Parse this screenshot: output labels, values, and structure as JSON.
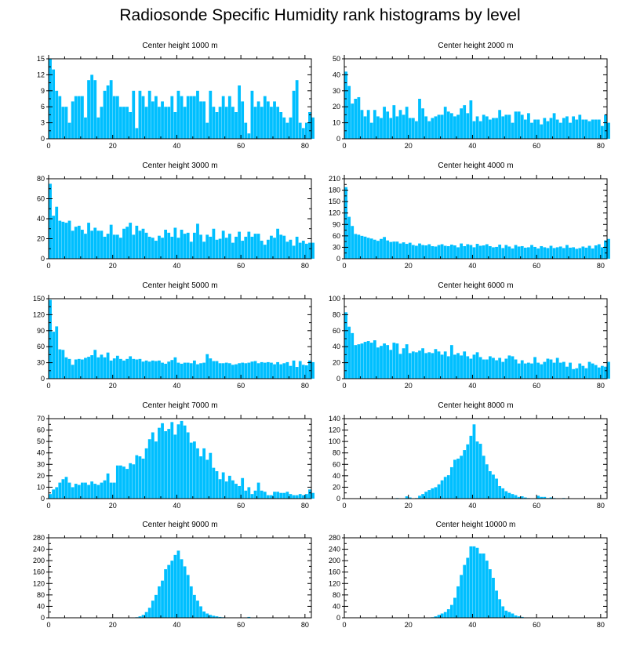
{
  "title": "Radiosonde Specific Humidity rank histograms by level",
  "style": {
    "bar_color": "#00BFFF",
    "axis_color": "#000000"
  },
  "chart_data": [
    {
      "type": "bar",
      "title": "Center height 1000 m",
      "xlim": [
        0,
        82
      ],
      "ylim": [
        0,
        15
      ],
      "xticks": [
        0,
        20,
        40,
        60,
        80
      ],
      "yticks": [
        0,
        3,
        6,
        9,
        12,
        15
      ],
      "values": [
        15,
        13,
        9,
        8,
        6,
        6,
        3,
        7,
        8,
        8,
        8,
        4,
        11,
        12,
        11,
        4,
        6,
        9,
        10,
        11,
        8,
        8,
        6,
        6,
        6,
        5,
        9,
        2,
        9,
        8,
        6,
        9,
        7,
        8,
        6,
        7,
        6,
        6,
        8,
        5,
        9,
        8,
        6,
        8,
        8,
        8,
        9,
        7,
        7,
        3,
        9,
        6,
        5,
        6,
        8,
        6,
        8,
        6,
        5,
        10,
        7,
        3,
        1,
        9,
        6,
        7,
        6,
        8,
        7,
        6,
        7,
        6,
        5,
        4,
        3,
        4,
        9,
        11,
        3,
        2,
        3,
        5,
        4
      ]
    },
    {
      "type": "bar",
      "title": "Center height 2000 m",
      "xlim": [
        0,
        82
      ],
      "ylim": [
        0,
        50
      ],
      "xticks": [
        0,
        20,
        40,
        60,
        80
      ],
      "yticks": [
        0,
        10,
        20,
        30,
        40,
        50
      ],
      "values": [
        42,
        33,
        22,
        25,
        26,
        18,
        14,
        18,
        10,
        18,
        14,
        13,
        20,
        17,
        13,
        21,
        14,
        18,
        15,
        20,
        13,
        13,
        11,
        25,
        19,
        14,
        11,
        13,
        14,
        15,
        15,
        20,
        17,
        16,
        14,
        15,
        19,
        21,
        16,
        24,
        11,
        14,
        11,
        15,
        14,
        12,
        13,
        13,
        18,
        14,
        15,
        15,
        10,
        17,
        17,
        15,
        12,
        16,
        10,
        12,
        12,
        9,
        13,
        11,
        13,
        16,
        12,
        10,
        13,
        14,
        10,
        14,
        12,
        15,
        12,
        12,
        11,
        12,
        12,
        12,
        8,
        15,
        10
      ]
    },
    {
      "type": "bar",
      "title": "Center height 3000 m",
      "xlim": [
        0,
        82
      ],
      "ylim": [
        0,
        80
      ],
      "xticks": [
        0,
        20,
        40,
        60,
        80
      ],
      "yticks": [
        0,
        20,
        40,
        60,
        80
      ],
      "values": [
        75,
        43,
        52,
        38,
        37,
        36,
        38,
        28,
        32,
        33,
        29,
        25,
        36,
        28,
        31,
        28,
        28,
        22,
        25,
        34,
        24,
        24,
        21,
        30,
        32,
        36,
        24,
        33,
        28,
        30,
        26,
        22,
        21,
        18,
        23,
        21,
        29,
        26,
        22,
        31,
        21,
        29,
        25,
        26,
        17,
        26,
        35,
        24,
        17,
        24,
        22,
        30,
        19,
        20,
        28,
        21,
        25,
        16,
        22,
        27,
        18,
        22,
        27,
        22,
        25,
        25,
        18,
        14,
        19,
        23,
        21,
        30,
        24,
        23,
        17,
        19,
        13,
        22,
        16,
        18,
        15,
        16,
        16
      ]
    },
    {
      "type": "bar",
      "title": "Center height 4000 m",
      "xlim": [
        0,
        82
      ],
      "ylim": [
        0,
        210
      ],
      "xticks": [
        0,
        20,
        40,
        60,
        80
      ],
      "yticks": [
        0,
        30,
        60,
        90,
        120,
        150,
        180,
        210
      ],
      "values": [
        188,
        110,
        86,
        65,
        63,
        60,
        58,
        55,
        53,
        50,
        47,
        52,
        57,
        48,
        44,
        45,
        45,
        40,
        43,
        39,
        42,
        36,
        34,
        40,
        36,
        35,
        38,
        33,
        32,
        36,
        38,
        34,
        33,
        37,
        35,
        30,
        40,
        33,
        38,
        36,
        30,
        39,
        34,
        35,
        38,
        33,
        30,
        31,
        37,
        28,
        36,
        32,
        27,
        36,
        32,
        33,
        29,
        30,
        36,
        31,
        27,
        33,
        30,
        28,
        34,
        28,
        30,
        32,
        28,
        36,
        29,
        30,
        26,
        28,
        32,
        29,
        34,
        27,
        35,
        38,
        30,
        48,
        52
      ]
    },
    {
      "type": "bar",
      "title": "Center height 5000 m",
      "xlim": [
        0,
        82
      ],
      "ylim": [
        0,
        150
      ],
      "xticks": [
        0,
        20,
        40,
        60,
        80
      ],
      "yticks": [
        0,
        30,
        60,
        90,
        120,
        150
      ],
      "values": [
        148,
        88,
        98,
        55,
        54,
        40,
        37,
        26,
        36,
        37,
        36,
        39,
        41,
        44,
        54,
        40,
        45,
        40,
        49,
        34,
        38,
        43,
        37,
        34,
        37,
        42,
        37,
        36,
        37,
        32,
        34,
        32,
        34,
        33,
        34,
        30,
        28,
        32,
        35,
        40,
        30,
        28,
        30,
        30,
        29,
        34,
        27,
        29,
        30,
        46,
        38,
        33,
        33,
        29,
        29,
        30,
        29,
        26,
        27,
        29,
        30,
        29,
        30,
        32,
        33,
        29,
        31,
        30,
        31,
        30,
        27,
        31,
        27,
        29,
        31,
        24,
        34,
        22,
        33,
        26,
        25,
        34,
        31
      ]
    },
    {
      "type": "bar",
      "title": "Center height 6000 m",
      "xlim": [
        0,
        82
      ],
      "ylim": [
        0,
        100
      ],
      "xticks": [
        0,
        20,
        40,
        60,
        80
      ],
      "yticks": [
        0,
        20,
        40,
        60,
        80,
        100
      ],
      "values": [
        83,
        65,
        57,
        42,
        43,
        44,
        46,
        47,
        45,
        48,
        39,
        41,
        44,
        42,
        36,
        45,
        44,
        31,
        38,
        43,
        32,
        34,
        33,
        35,
        38,
        32,
        33,
        32,
        37,
        34,
        30,
        34,
        28,
        42,
        30,
        32,
        29,
        34,
        28,
        25,
        30,
        33,
        27,
        24,
        24,
        28,
        26,
        23,
        26,
        21,
        25,
        29,
        28,
        24,
        19,
        23,
        19,
        20,
        19,
        27,
        20,
        18,
        21,
        25,
        24,
        20,
        26,
        20,
        21,
        15,
        20,
        12,
        13,
        19,
        16,
        13,
        21,
        19,
        17,
        14,
        16,
        15,
        21
      ]
    },
    {
      "type": "bar",
      "title": "Center height 7000 m",
      "xlim": [
        0,
        82
      ],
      "ylim": [
        0,
        70
      ],
      "xticks": [
        0,
        20,
        40,
        60,
        80
      ],
      "yticks": [
        0,
        10,
        20,
        30,
        40,
        50,
        60,
        70
      ],
      "values": [
        4,
        8,
        10,
        14,
        17,
        19,
        14,
        10,
        13,
        12,
        14,
        14,
        12,
        15,
        13,
        12,
        14,
        16,
        22,
        14,
        14,
        29,
        29,
        28,
        26,
        31,
        30,
        38,
        37,
        35,
        44,
        52,
        58,
        50,
        62,
        66,
        59,
        61,
        67,
        56,
        65,
        68,
        64,
        58,
        49,
        50,
        44,
        37,
        44,
        34,
        40,
        27,
        24,
        17,
        23,
        15,
        20,
        16,
        13,
        11,
        18,
        7,
        10,
        4,
        7,
        14,
        7,
        6,
        3,
        3,
        6,
        6,
        5,
        5,
        6,
        4,
        3,
        3,
        4,
        3,
        4,
        8,
        5
      ]
    },
    {
      "type": "bar",
      "title": "Center height 8000 m",
      "xlim": [
        0,
        82
      ],
      "ylim": [
        0,
        140
      ],
      "xticks": [
        0,
        20,
        40,
        60,
        80
      ],
      "yticks": [
        0,
        20,
        40,
        60,
        80,
        100,
        120,
        140
      ],
      "values": [
        0,
        0,
        0,
        0,
        0,
        0,
        0,
        0,
        0,
        0,
        0,
        0,
        0,
        0,
        0,
        0,
        1,
        0,
        0,
        4,
        2,
        0,
        1,
        5,
        8,
        12,
        15,
        18,
        20,
        25,
        32,
        38,
        41,
        55,
        68,
        70,
        75,
        85,
        95,
        110,
        130,
        100,
        96,
        75,
        60,
        48,
        42,
        35,
        22,
        18,
        13,
        10,
        8,
        6,
        3,
        4,
        2,
        1,
        0,
        0,
        5,
        3,
        3,
        1,
        2,
        1,
        0,
        0,
        1,
        0,
        0,
        0,
        0,
        0,
        0,
        0,
        0,
        0,
        0,
        0,
        0,
        0,
        0
      ]
    },
    {
      "type": "bar",
      "title": "Center height 9000 m",
      "xlim": [
        0,
        82
      ],
      "ylim": [
        0,
        280
      ],
      "xticks": [
        0,
        20,
        40,
        60,
        80
      ],
      "yticks": [
        0,
        40,
        80,
        120,
        160,
        200,
        240,
        280
      ],
      "values": [
        0,
        0,
        0,
        0,
        0,
        0,
        0,
        0,
        0,
        0,
        0,
        0,
        0,
        0,
        0,
        0,
        0,
        0,
        0,
        0,
        0,
        0,
        0,
        0,
        0,
        0,
        1,
        2,
        5,
        10,
        20,
        35,
        60,
        80,
        110,
        130,
        170,
        185,
        200,
        220,
        235,
        205,
        180,
        150,
        110,
        80,
        60,
        40,
        22,
        15,
        10,
        7,
        5,
        3,
        2,
        1,
        0,
        0,
        0,
        0,
        0,
        0,
        3,
        1,
        0,
        0,
        0,
        0,
        0,
        0,
        0,
        0,
        0,
        0,
        0,
        0,
        0,
        0,
        0,
        0,
        0,
        0,
        0
      ]
    },
    {
      "type": "bar",
      "title": "Center height 10000 m",
      "xlim": [
        0,
        82
      ],
      "ylim": [
        0,
        280
      ],
      "xticks": [
        0,
        20,
        40,
        60,
        80
      ],
      "yticks": [
        0,
        40,
        80,
        120,
        160,
        200,
        240,
        280
      ],
      "values": [
        0,
        0,
        0,
        0,
        0,
        0,
        0,
        0,
        0,
        0,
        0,
        0,
        0,
        0,
        0,
        0,
        0,
        0,
        0,
        0,
        0,
        0,
        0,
        0,
        0,
        0,
        0,
        2,
        5,
        10,
        15,
        20,
        30,
        45,
        70,
        110,
        150,
        185,
        210,
        250,
        250,
        245,
        225,
        225,
        200,
        170,
        140,
        95,
        65,
        40,
        25,
        20,
        15,
        8,
        5,
        3,
        1,
        0,
        1,
        0,
        0,
        0,
        0,
        0,
        0,
        0,
        0,
        0,
        0,
        0,
        0,
        0,
        0,
        0,
        0,
        0,
        0,
        0,
        0,
        0,
        0,
        0,
        0
      ]
    }
  ]
}
